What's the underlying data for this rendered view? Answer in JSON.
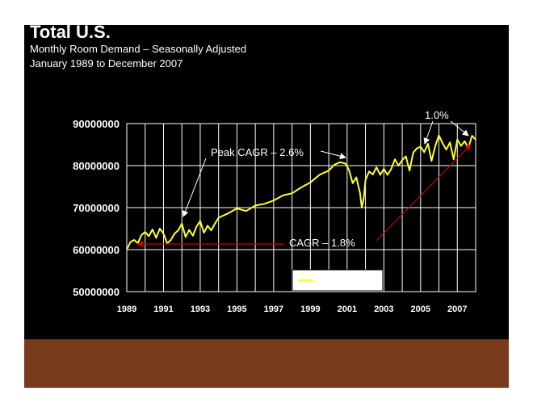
{
  "slide": {
    "title": "Total U.S.",
    "subtitle_line1": "Monthly Room Demand – Seasonally Adjusted",
    "subtitle_line2": "January 1989 to December 2007",
    "background": "#000000",
    "footer_color": "#7a3a1c"
  },
  "chart_data": {
    "type": "line",
    "title": "",
    "xlabel": "",
    "ylabel": "",
    "xlim": [
      1989,
      2008
    ],
    "ylim": [
      50000000,
      90000000
    ],
    "grid": true,
    "y_ticks": [
      "90000000",
      "80000000",
      "70000000",
      "60000000",
      "50000000"
    ],
    "x_ticks": [
      "1989",
      "1991",
      "1993",
      "1995",
      "1997",
      "1999",
      "2001",
      "2003",
      "2005",
      "2007"
    ],
    "legend": {
      "position": "bottom-right",
      "entries": [
        "Seas Adj"
      ]
    },
    "series": [
      {
        "name": "Seas Adj",
        "color": "#ffff33",
        "x": [
          1989.0,
          1989.2,
          1989.4,
          1989.6,
          1989.8,
          1990.0,
          1990.2,
          1990.4,
          1990.6,
          1990.8,
          1991.0,
          1991.2,
          1991.4,
          1991.6,
          1991.8,
          1992.0,
          1992.2,
          1992.4,
          1992.6,
          1992.8,
          1993.0,
          1993.2,
          1993.4,
          1993.6,
          1993.8,
          1994.0,
          1994.5,
          1995.0,
          1995.5,
          1996.0,
          1996.5,
          1997.0,
          1997.5,
          1998.0,
          1998.5,
          1999.0,
          1999.5,
          2000.0,
          2000.3,
          2000.6,
          2000.9,
          2001.1,
          2001.3,
          2001.5,
          2001.7,
          2001.8,
          2001.9,
          2002.0,
          2002.2,
          2002.4,
          2002.6,
          2002.8,
          2003.0,
          2003.2,
          2003.4,
          2003.6,
          2003.8,
          2004.0,
          2004.2,
          2004.4,
          2004.6,
          2004.8,
          2005.0,
          2005.2,
          2005.4,
          2005.6,
          2005.8,
          2006.0,
          2006.2,
          2006.4,
          2006.6,
          2006.8,
          2007.0,
          2007.2,
          2007.4,
          2007.6,
          2007.8,
          2008.0
        ],
        "values": [
          60000000,
          61800000,
          62300000,
          61500000,
          63500000,
          64200000,
          63200000,
          64800000,
          62800000,
          65000000,
          63800000,
          61500000,
          62300000,
          63800000,
          64600000,
          66200000,
          63000000,
          64700000,
          63300000,
          65500000,
          66800000,
          64000000,
          65700000,
          64600000,
          66200000,
          67600000,
          68600000,
          69800000,
          69200000,
          70500000,
          70900000,
          71700000,
          72900000,
          73400000,
          74800000,
          76000000,
          77800000,
          78800000,
          80200000,
          80800000,
          80500000,
          79000000,
          75800000,
          77200000,
          73500000,
          70000000,
          72000000,
          76600000,
          78600000,
          77900000,
          79600000,
          77800000,
          79200000,
          77800000,
          79200000,
          81500000,
          80000000,
          81300000,
          82200000,
          78800000,
          83100000,
          84100000,
          84500000,
          83200000,
          85200000,
          81100000,
          84700000,
          87200000,
          85300000,
          83800000,
          85500000,
          81500000,
          86200000,
          84700000,
          85800000,
          84200000,
          87100000,
          86200000
        ]
      }
    ],
    "annotations": [
      {
        "text": "Peak CAGR – 2.6%"
      },
      {
        "text": "1.0%"
      },
      {
        "text": "CAGR – 1.8%"
      }
    ]
  }
}
